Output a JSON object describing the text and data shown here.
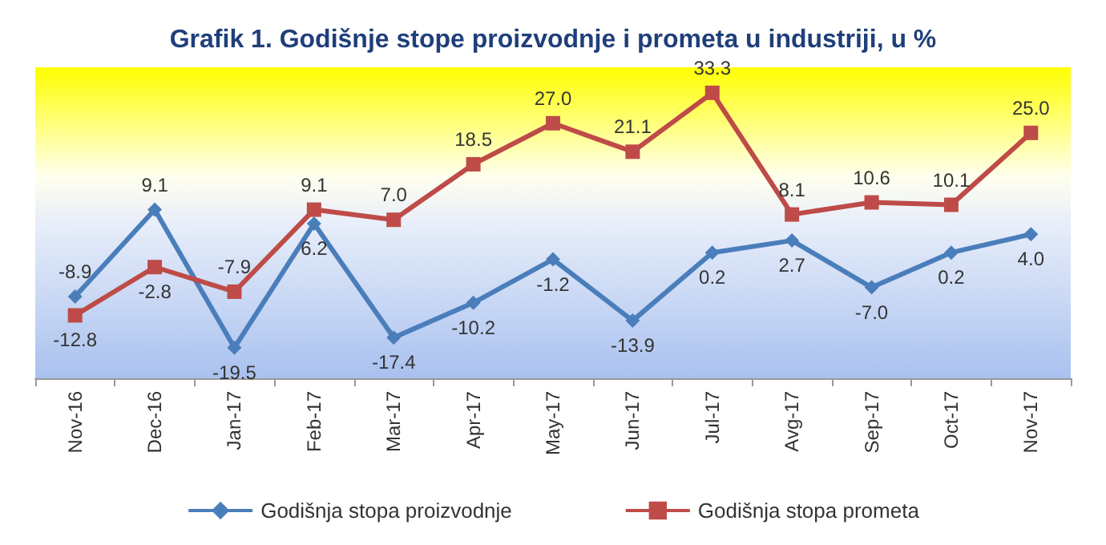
{
  "chart_data": {
    "type": "line",
    "title": "Grafik 1. Godišnje stope proizvodnje i prometa u industriji, u %",
    "categories": [
      "Nov-16",
      "Dec-16",
      "Jan-17",
      "Feb-17",
      "Mar-17",
      "Apr-17",
      "May-17",
      "Jun-17",
      "Jul-17",
      "Avg-17",
      "Sep-17",
      "Oct-17",
      "Nov-17"
    ],
    "series": [
      {
        "name": "Godišnja stopa proizvodnje",
        "color": "#4a7ebb",
        "marker": "diamond",
        "values": [
          -8.9,
          9.1,
          -19.5,
          6.2,
          -17.4,
          -10.2,
          -1.2,
          -13.9,
          0.2,
          2.7,
          -7.0,
          0.2,
          4.0
        ],
        "value_labels": [
          "-8.9",
          "9.1",
          "-19.5",
          "6.2",
          "-17.4",
          "-10.2",
          "-1.2",
          "-13.9",
          "0.2",
          "2.7",
          "-7.0",
          "0.2",
          "4.0"
        ]
      },
      {
        "name": "Godišnja stopa prometa",
        "color": "#be4b48",
        "marker": "square",
        "values": [
          -12.8,
          -2.8,
          -7.9,
          9.1,
          7.0,
          18.5,
          27.0,
          21.1,
          33.3,
          8.1,
          10.6,
          10.1,
          25.0
        ],
        "value_labels": [
          "-12.8",
          "-2.8",
          "-7.9",
          "9.1",
          "7.0",
          "18.5",
          "27.0",
          "21.1",
          "33.3",
          "8.1",
          "10.6",
          "10.1",
          "25.0"
        ]
      }
    ],
    "legend": "bottom",
    "line_style": "solid"
  }
}
